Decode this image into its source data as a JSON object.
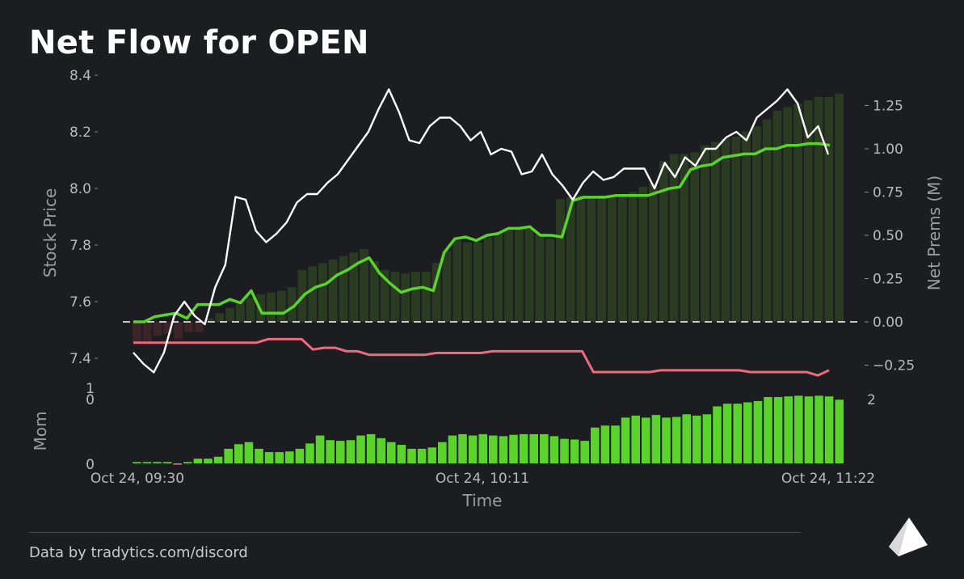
{
  "title": "Net Flow for OPEN",
  "footer": "Data by tradytics.com/discord",
  "logo_icon": "tradytics-pyramid-icon",
  "colors": {
    "background": "#1c1d21",
    "price_line": "#ffffff",
    "green_line": "#5ad32b",
    "red_line": "#ef6a7c",
    "momentum_bar": "#5ad32b",
    "prem_bar_pos": "#2b3b22",
    "prem_bar_neg": "#3d2428",
    "zero_line": "#ffffff"
  },
  "chart_data": [
    {
      "type": "line",
      "name": "main",
      "x_ticks": [
        "Oct 24, 09:30",
        "Oct 24, 10:11",
        "Oct 24, 11:22"
      ],
      "xlabel": "Time",
      "y_left": {
        "label": "Stock Price",
        "range": [
          7.35,
          8.45
        ],
        "ticks": [
          "7.4",
          "7.6",
          "7.8",
          "8.0",
          "8.2",
          "8.4"
        ]
      },
      "y_right": {
        "label": "Net Prems (M)",
        "range": [
          -0.35,
          1.4
        ],
        "ticks": [
          "−0.25",
          "0.00",
          "0.25",
          "0.50",
          "0.75",
          "1.00",
          "1.25"
        ]
      },
      "zero_line": 0.0,
      "price": [
        7.42,
        7.38,
        7.35,
        7.42,
        7.55,
        7.6,
        7.55,
        7.52,
        7.65,
        7.73,
        7.97,
        7.96,
        7.85,
        7.81,
        7.84,
        7.88,
        7.95,
        7.98,
        7.98,
        8.02,
        8.05,
        8.1,
        8.15,
        8.2,
        8.28,
        8.35,
        8.27,
        8.17,
        8.16,
        8.22,
        8.25,
        8.25,
        8.22,
        8.17,
        8.2,
        8.12,
        8.14,
        8.13,
        8.05,
        8.06,
        8.12,
        8.05,
        8.01,
        7.96,
        8.02,
        8.06,
        8.03,
        8.04,
        8.07,
        8.07,
        8.07,
        8.0,
        8.09,
        8.04,
        8.11,
        8.08,
        8.14,
        8.14,
        8.18,
        8.2,
        8.17,
        8.25,
        8.28,
        8.31,
        8.35,
        8.3,
        8.18,
        8.22,
        8.12
      ],
      "net_prem_cumulative": [
        0.0,
        0.0,
        0.03,
        0.04,
        0.05,
        0.02,
        0.1,
        0.1,
        0.1,
        0.13,
        0.11,
        0.18,
        0.05,
        0.05,
        0.05,
        0.09,
        0.16,
        0.2,
        0.22,
        0.27,
        0.3,
        0.34,
        0.37,
        0.28,
        0.22,
        0.17,
        0.19,
        0.2,
        0.18,
        0.4,
        0.48,
        0.49,
        0.47,
        0.5,
        0.51,
        0.54,
        0.54,
        0.55,
        0.5,
        0.5,
        0.49,
        0.7,
        0.72,
        0.72,
        0.72,
        0.73,
        0.73,
        0.73,
        0.73,
        0.75,
        0.77,
        0.78,
        0.88,
        0.9,
        0.91,
        0.95,
        0.96,
        0.97,
        0.97,
        1.0,
        1.0,
        1.02,
        1.02,
        1.03,
        1.03,
        1.02
      ],
      "net_prem_negative": [
        -0.12,
        -0.12,
        -0.12,
        -0.12,
        -0.12,
        -0.12,
        -0.12,
        -0.12,
        -0.12,
        -0.12,
        -0.12,
        -0.12,
        -0.1,
        -0.1,
        -0.1,
        -0.1,
        -0.16,
        -0.15,
        -0.15,
        -0.17,
        -0.17,
        -0.19,
        -0.19,
        -0.19,
        -0.19,
        -0.19,
        -0.19,
        -0.18,
        -0.18,
        -0.18,
        -0.18,
        -0.18,
        -0.17,
        -0.17,
        -0.17,
        -0.17,
        -0.17,
        -0.17,
        -0.17,
        -0.17,
        -0.17,
        -0.29,
        -0.29,
        -0.29,
        -0.29,
        -0.29,
        -0.29,
        -0.28,
        -0.28,
        -0.28,
        -0.28,
        -0.28,
        -0.28,
        -0.28,
        -0.28,
        -0.29,
        -0.29,
        -0.29,
        -0.29,
        -0.29,
        -0.29,
        -0.31,
        -0.28
      ],
      "prem_bars": [
        -0.12,
        -0.11,
        -0.08,
        -0.07,
        -0.1,
        -0.06,
        -0.06,
        0.02,
        0.05,
        0.08,
        0.12,
        0.14,
        0.16,
        0.17,
        0.18,
        0.2,
        0.3,
        0.32,
        0.34,
        0.36,
        0.38,
        0.4,
        0.42,
        0.35,
        0.3,
        0.29,
        0.28,
        0.29,
        0.29,
        0.34,
        0.41,
        0.47,
        0.46,
        0.46,
        0.49,
        0.51,
        0.53,
        0.54,
        0.54,
        0.51,
        0.48,
        0.71,
        0.72,
        0.73,
        0.72,
        0.73,
        0.73,
        0.73,
        0.75,
        0.78,
        0.8,
        0.93,
        0.97,
        0.97,
        0.98,
        1.02,
        1.04,
        1.06,
        1.07,
        1.1,
        1.13,
        1.17,
        1.22,
        1.24,
        1.26,
        1.28,
        1.3,
        1.3,
        1.32
      ]
    },
    {
      "type": "bar",
      "name": "momentum",
      "ylabel": "Mom",
      "y_ticks_left": [
        "1",
        "0",
        "0"
      ],
      "y_tick_right": "2",
      "values": [
        0.02,
        0.02,
        0.02,
        0.02,
        -0.02,
        0.02,
        0.07,
        0.07,
        0.1,
        0.22,
        0.29,
        0.32,
        0.22,
        0.17,
        0.17,
        0.18,
        0.22,
        0.3,
        0.42,
        0.35,
        0.34,
        0.35,
        0.42,
        0.44,
        0.38,
        0.32,
        0.28,
        0.22,
        0.22,
        0.24,
        0.32,
        0.42,
        0.44,
        0.42,
        0.44,
        0.42,
        0.41,
        0.43,
        0.44,
        0.44,
        0.44,
        0.41,
        0.37,
        0.36,
        0.34,
        0.54,
        0.57,
        0.57,
        0.69,
        0.72,
        0.69,
        0.73,
        0.69,
        0.7,
        0.74,
        0.72,
        0.74,
        0.86,
        0.9,
        0.9,
        0.92,
        0.94,
        1.0,
        1.0,
        1.01,
        1.02,
        1.01,
        1.02,
        1.01,
        0.96
      ],
      "ylim": [
        0,
        1.05
      ]
    }
  ]
}
